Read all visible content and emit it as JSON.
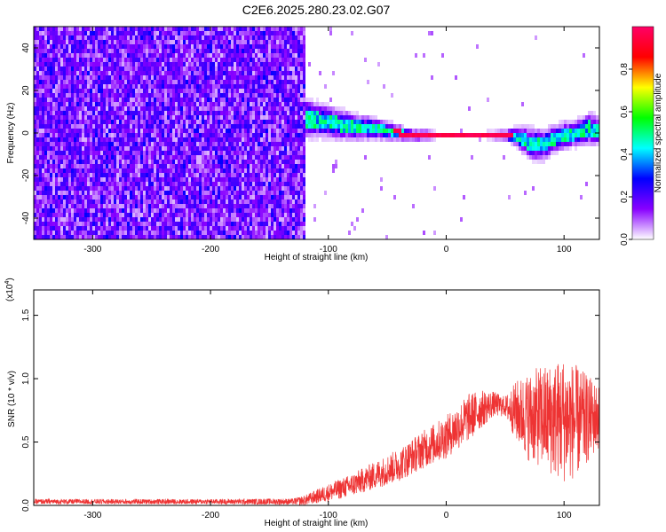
{
  "title": "C2E6.2025.280.23.02.G07",
  "colors": {
    "snr_line": "#ee3333",
    "axis": "#000000"
  },
  "chart_data": [
    {
      "type": "heatmap",
      "name": "spectrogram",
      "xlabel": "Height of straight line (km)",
      "ylabel": "Frequency (Hz)",
      "xlim": [
        -350,
        130
      ],
      "ylim": [
        -50,
        50
      ],
      "x_ticks": [
        -300,
        -200,
        -100,
        0,
        100
      ],
      "x_tick_labels": [
        "-300",
        "-200",
        "-100",
        "0",
        "100"
      ],
      "y_ticks": [
        -40,
        -20,
        0,
        20,
        40
      ],
      "y_tick_labels": [
        "-40",
        "-20",
        "0",
        "20",
        "40"
      ],
      "noise_region_x": [
        -350,
        -120
      ],
      "ridge": {
        "x": [
          -120,
          -100,
          -80,
          -60,
          -40,
          -30,
          -20,
          0,
          20,
          50,
          60,
          70,
          80,
          90,
          100,
          110,
          120,
          130
        ],
        "freq": [
          8,
          6,
          4,
          3,
          1,
          0,
          0,
          0,
          0,
          0,
          -1,
          -4,
          -5,
          -2,
          0,
          1,
          3,
          2
        ],
        "halfwidth": [
          7,
          6,
          5,
          4,
          3,
          2,
          2,
          1,
          1,
          2,
          4,
          6,
          6,
          5,
          5,
          5,
          6,
          5
        ]
      },
      "colorbar": {
        "label": "Normalized spectral amplitude",
        "range": [
          0,
          1
        ],
        "ticks": [
          0.0,
          0.2,
          0.4,
          0.6,
          0.8
        ],
        "tick_labels": [
          "0.0",
          "0.2",
          "0.4",
          "0.6",
          "0.8"
        ],
        "colormap": [
          "#ffffff",
          "#8800ff",
          "#0000ff",
          "#00ffff",
          "#00ff00",
          "#ffff00",
          "#ff0000",
          "#ff0066"
        ]
      }
    },
    {
      "type": "line",
      "name": "snr",
      "xlabel": "Height of straight line (km)",
      "ylabel": "SNR (10 * v/v)",
      "y_multiplier_label": "(x10",
      "y_multiplier_exp": "4",
      "y_multiplier_close": ")",
      "xlim": [
        -350,
        130
      ],
      "ylim": [
        0,
        17000
      ],
      "x_ticks": [
        -300,
        -200,
        -100,
        0,
        100
      ],
      "x_tick_labels": [
        "-300",
        "-200",
        "-100",
        "0",
        "100"
      ],
      "y_ticks": [
        0,
        5000,
        10000,
        15000
      ],
      "y_tick_labels": [
        "0.0",
        "0.5",
        "1.0",
        "1.5"
      ],
      "series": [
        {
          "name": "SNR",
          "x": [
            -350,
            -300,
            -200,
            -130,
            -120,
            -100,
            -80,
            -60,
            -40,
            -20,
            0,
            10,
            20,
            30,
            40,
            50,
            60,
            70,
            80,
            90,
            100,
            110,
            120,
            130
          ],
          "mean": [
            300,
            300,
            300,
            300,
            400,
            1000,
            1600,
            2400,
            3200,
            4400,
            5400,
            6200,
            7000,
            7600,
            8000,
            7800,
            7400,
            7000,
            7000,
            6800,
            6800,
            6600,
            6800,
            7000
          ],
          "amplitude": [
            200,
            200,
            200,
            250,
            400,
            700,
            900,
            1100,
            1300,
            1500,
            1700,
            1800,
            1900,
            1500,
            1000,
            800,
            2500,
            3500,
            4000,
            4500,
            5000,
            4500,
            3500,
            2500
          ]
        }
      ]
    }
  ]
}
